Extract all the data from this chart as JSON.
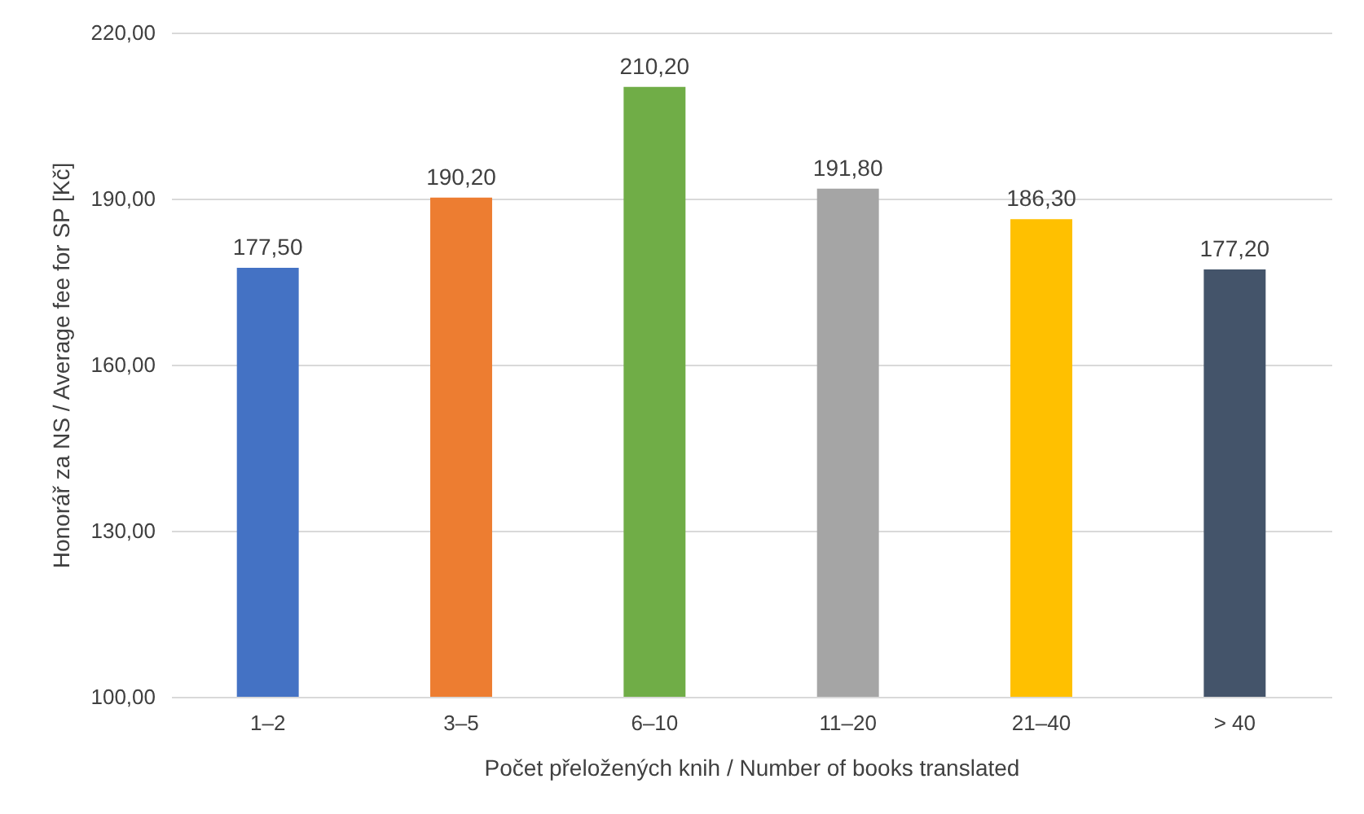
{
  "chart_data": {
    "type": "bar",
    "xlabel": "Počet přeložených knih / Number of books translated",
    "ylabel": "Honorář za NS / Average fee for SP [Kč]",
    "categories": [
      "1–2",
      "3–5",
      "6–10",
      "11–20",
      "21–40",
      "> 40"
    ],
    "values": [
      177.5,
      190.2,
      210.2,
      191.8,
      186.3,
      177.2
    ],
    "colors": [
      "#4472c4",
      "#ed7d31",
      "#70ad47",
      "#a5a5a5",
      "#ffc000",
      "#44546a"
    ],
    "value_labels": [
      "177,50",
      "190,20",
      "210,20",
      "191,80",
      "186,30",
      "177,20"
    ],
    "ylim": [
      100,
      220
    ],
    "yticks": [
      {
        "value": 100,
        "label": "100,00"
      },
      {
        "value": 130,
        "label": "130,00"
      },
      {
        "value": 160,
        "label": "160,00"
      },
      {
        "value": 190,
        "label": "190,00"
      },
      {
        "value": 220,
        "label": "220,00"
      }
    ],
    "grid": "y",
    "legend": false
  }
}
